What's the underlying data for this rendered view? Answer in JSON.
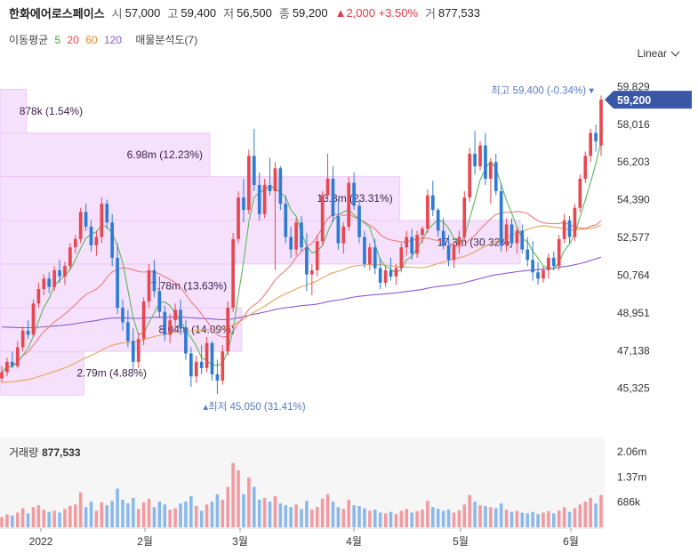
{
  "header": {
    "name": "한화에어로스페이스",
    "open_label": "시",
    "open": "57,000",
    "high_label": "고",
    "high": "59,400",
    "low_label": "저",
    "low": "56,500",
    "close_label": "종",
    "close": "59,200",
    "change": "▲2,000 +3.50%",
    "volume_label": "거",
    "volume": "877,533"
  },
  "ma_legend": {
    "label": "이동평균",
    "items": [
      {
        "text": "5",
        "color": "#3ca53c"
      },
      {
        "text": "20",
        "color": "#e84a4a"
      },
      {
        "text": "60",
        "color": "#e08a2e"
      },
      {
        "text": "120",
        "color": "#8a5cd6"
      }
    ],
    "profile_label": "매물분석도(7)"
  },
  "scale_selector": "Linear",
  "volume_panel": {
    "label": "거래량",
    "value": "877,533"
  },
  "chart_data": {
    "type": "candlestick",
    "price_axis": {
      "min": 44500,
      "max": 60400,
      "ticks": [
        "59,829",
        "58,016",
        "56,203",
        "54,390",
        "52,577",
        "50,764",
        "48,951",
        "47,138",
        "45,325"
      ]
    },
    "last_price_tag": "59,200",
    "high_annotation": "최고 59,400 (-0.34%)",
    "low_annotation": "최저 45,050 (31.41%)",
    "x_labels": [
      "2022",
      "2월",
      "3월",
      "4월",
      "5월",
      "6월"
    ],
    "volume_axis": {
      "ticks": [
        "2.06m",
        "1.37m",
        "686k"
      ]
    },
    "volume_profile": [
      {
        "label": "2.79m (4.88%)",
        "low": 45000,
        "high": 47100,
        "value": 2.79
      },
      {
        "label": "8.04m (14.09%)",
        "low": 47100,
        "high": 49200,
        "value": 8.04
      },
      {
        "label": "7.78m (13.63%)",
        "low": 49200,
        "high": 51300,
        "value": 7.78
      },
      {
        "label": "17.3m (30.32%)",
        "low": 51300,
        "high": 53400,
        "value": 17.3
      },
      {
        "label": "13.3m (23.31%)",
        "low": 53400,
        "high": 55500,
        "value": 13.3
      },
      {
        "label": "6.98m (12.23%)",
        "low": 55500,
        "high": 57600,
        "value": 6.98
      },
      {
        "label": "878k (1.54%)",
        "low": 57600,
        "high": 59700,
        "value": 0.878
      }
    ],
    "candles": [
      [
        45800,
        46400,
        45600,
        46100
      ],
      [
        46100,
        46800,
        45900,
        46600
      ],
      [
        46600,
        47100,
        46300,
        46400
      ],
      [
        46400,
        47600,
        46300,
        47300
      ],
      [
        47300,
        48300,
        47100,
        48100
      ],
      [
        48100,
        48600,
        47700,
        47900
      ],
      [
        47900,
        49600,
        47800,
        49400
      ],
      [
        49400,
        50400,
        49200,
        50100
      ],
      [
        50100,
        50800,
        49800,
        50600
      ],
      [
        50600,
        50900,
        49900,
        50200
      ],
      [
        50200,
        51200,
        50000,
        51000
      ],
      [
        51000,
        51500,
        50400,
        50700
      ],
      [
        50700,
        51400,
        50300,
        51200
      ],
      [
        51200,
        52300,
        51000,
        52100
      ],
      [
        52100,
        52700,
        51800,
        52500
      ],
      [
        52500,
        54000,
        52300,
        53800
      ],
      [
        53800,
        54200,
        52900,
        53100
      ],
      [
        53100,
        53400,
        51900,
        52200
      ],
      [
        52200,
        52900,
        51700,
        52600
      ],
      [
        52600,
        54500,
        52300,
        54200
      ],
      [
        54200,
        54400,
        53000,
        53300
      ],
      [
        53300,
        53700,
        51200,
        51600
      ],
      [
        51600,
        52300,
        48900,
        49200
      ],
      [
        49200,
        49600,
        48100,
        48500
      ],
      [
        48500,
        49100,
        47300,
        47600
      ],
      [
        47600,
        48200,
        46200,
        46600
      ],
      [
        46600,
        48000,
        46300,
        47700
      ],
      [
        47700,
        49700,
        47400,
        49500
      ],
      [
        49500,
        51300,
        49200,
        51000
      ],
      [
        51000,
        51500,
        49700,
        50000
      ],
      [
        50000,
        50700,
        48700,
        49000
      ],
      [
        49000,
        49300,
        47600,
        47900
      ],
      [
        47900,
        48900,
        47500,
        48600
      ],
      [
        48600,
        49400,
        48200,
        49100
      ],
      [
        49100,
        49600,
        47900,
        48200
      ],
      [
        48200,
        48600,
        46700,
        47000
      ],
      [
        47000,
        47300,
        45400,
        45900
      ],
      [
        45900,
        46900,
        45600,
        46600
      ],
      [
        46600,
        47400,
        46000,
        46300
      ],
      [
        46300,
        47800,
        46100,
        47500
      ],
      [
        47500,
        47600,
        45700,
        46000
      ],
      [
        46000,
        46700,
        45050,
        45700
      ],
      [
        45700,
        47400,
        45500,
        47100
      ],
      [
        47100,
        49500,
        46900,
        49200
      ],
      [
        49200,
        52800,
        49000,
        52500
      ],
      [
        52500,
        54800,
        52300,
        54500
      ],
      [
        54500,
        55400,
        53300,
        53900
      ],
      [
        53900,
        56800,
        53700,
        56500
      ],
      [
        56500,
        57800,
        54800,
        55100
      ],
      [
        55100,
        55700,
        53400,
        53700
      ],
      [
        53700,
        55400,
        53500,
        55100
      ],
      [
        55100,
        56400,
        54600,
        54800
      ],
      [
        54800,
        56200,
        51000,
        55900
      ],
      [
        55900,
        56000,
        53900,
        54200
      ],
      [
        54200,
        54600,
        52300,
        52600
      ],
      [
        52600,
        53100,
        51600,
        52000
      ],
      [
        52000,
        53500,
        51700,
        53300
      ],
      [
        53300,
        53600,
        51900,
        52100
      ],
      [
        52100,
        52800,
        50000,
        50800
      ],
      [
        50800,
        51300,
        49800,
        51000
      ],
      [
        51000,
        52700,
        50700,
        52400
      ],
      [
        52400,
        54800,
        52200,
        54600
      ],
      [
        54600,
        56600,
        54300,
        55400
      ],
      [
        55400,
        56000,
        53300,
        53600
      ],
      [
        53600,
        54400,
        52000,
        52300
      ],
      [
        52300,
        53300,
        51800,
        53100
      ],
      [
        53100,
        55500,
        52900,
        55200
      ],
      [
        55200,
        55700,
        53900,
        54100
      ],
      [
        54100,
        54400,
        52300,
        52600
      ],
      [
        52600,
        52900,
        51100,
        51300
      ],
      [
        51300,
        52300,
        51000,
        52100
      ],
      [
        52100,
        52500,
        50800,
        51100
      ],
      [
        51100,
        51600,
        50100,
        50400
      ],
      [
        50400,
        51200,
        50200,
        51000
      ],
      [
        51000,
        51600,
        50500,
        50700
      ],
      [
        50700,
        51300,
        50300,
        51100
      ],
      [
        51100,
        52300,
        50900,
        52100
      ],
      [
        52100,
        52900,
        51700,
        52600
      ],
      [
        52600,
        53000,
        51500,
        51800
      ],
      [
        51800,
        52900,
        51600,
        52700
      ],
      [
        52700,
        53100,
        52300,
        53000
      ],
      [
        53000,
        54900,
        52800,
        54600
      ],
      [
        54600,
        55300,
        53600,
        53900
      ],
      [
        53900,
        54000,
        52600,
        52900
      ],
      [
        52900,
        53500,
        52000,
        52200
      ],
      [
        52200,
        52700,
        51200,
        51500
      ],
      [
        51500,
        52400,
        51100,
        52200
      ],
      [
        52200,
        52900,
        51800,
        52600
      ],
      [
        52600,
        54800,
        52400,
        54500
      ],
      [
        54500,
        56900,
        54300,
        56600
      ],
      [
        56600,
        57700,
        55600,
        56000
      ],
      [
        56000,
        57200,
        55800,
        57000
      ],
      [
        57000,
        57600,
        55100,
        55400
      ],
      [
        55400,
        56400,
        54200,
        56200
      ],
      [
        56200,
        56600,
        54600,
        54800
      ],
      [
        54800,
        55200,
        51900,
        52200
      ],
      [
        52200,
        53500,
        51900,
        53200
      ],
      [
        53200,
        53500,
        52100,
        52300
      ],
      [
        52300,
        53100,
        51800,
        52900
      ],
      [
        52900,
        53200,
        51800,
        52000
      ],
      [
        52000,
        52600,
        51200,
        51500
      ],
      [
        51500,
        52400,
        50500,
        50900
      ],
      [
        50900,
        51400,
        50300,
        50600
      ],
      [
        50600,
        51200,
        50400,
        51000
      ],
      [
        51000,
        51800,
        50600,
        51600
      ],
      [
        51600,
        51900,
        51000,
        51200
      ],
      [
        51200,
        52700,
        51000,
        52500
      ],
      [
        52500,
        53700,
        52300,
        53400
      ],
      [
        53400,
        53600,
        52300,
        52600
      ],
      [
        52600,
        54200,
        52400,
        54000
      ],
      [
        54000,
        55600,
        53800,
        55400
      ],
      [
        55400,
        56700,
        55200,
        56500
      ],
      [
        56500,
        57800,
        56200,
        57600
      ],
      [
        57600,
        58000,
        56700,
        57200
      ],
      [
        57000,
        59400,
        56500,
        59200
      ]
    ],
    "volumes": [
      0.28,
      0.35,
      0.32,
      0.4,
      0.52,
      0.38,
      0.55,
      0.6,
      0.48,
      0.42,
      0.45,
      0.4,
      0.5,
      0.58,
      0.62,
      0.95,
      0.55,
      0.7,
      0.45,
      0.68,
      0.6,
      0.72,
      1.05,
      0.75,
      0.65,
      0.8,
      0.5,
      0.68,
      0.78,
      0.55,
      0.7,
      0.62,
      0.48,
      0.52,
      0.65,
      0.7,
      0.85,
      0.58,
      0.45,
      0.62,
      0.7,
      0.9,
      0.75,
      1.1,
      1.75,
      1.55,
      0.9,
      1.35,
      1.1,
      0.75,
      0.8,
      0.7,
      0.85,
      0.65,
      0.6,
      0.55,
      0.62,
      0.5,
      0.72,
      0.48,
      0.55,
      0.78,
      0.9,
      0.7,
      0.55,
      0.5,
      0.75,
      0.6,
      0.58,
      0.52,
      0.45,
      0.48,
      0.4,
      0.38,
      0.42,
      0.36,
      0.45,
      0.5,
      0.4,
      0.44,
      0.48,
      0.72,
      0.55,
      0.5,
      0.45,
      0.48,
      0.4,
      0.46,
      0.62,
      0.88,
      0.7,
      0.6,
      0.58,
      0.55,
      0.52,
      0.65,
      0.48,
      0.42,
      0.45,
      0.4,
      0.38,
      0.42,
      0.36,
      0.4,
      0.44,
      0.38,
      0.46,
      0.55,
      0.42,
      0.52,
      0.62,
      0.7,
      0.8,
      0.65,
      0.88
    ]
  }
}
